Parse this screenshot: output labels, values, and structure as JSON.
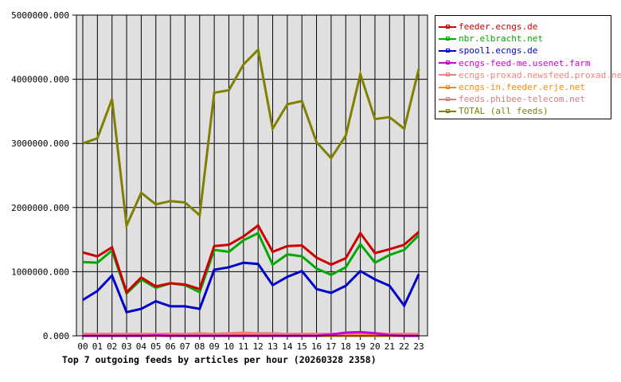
{
  "chart_data": {
    "type": "line",
    "title": "Top 7 outgoing feeds by articles per hour (20260328 2358)",
    "xlabel": "",
    "ylabel": "",
    "ylim": [
      0,
      5000000
    ],
    "yticks": [
      "0.000",
      "1000000.000",
      "2000000.000",
      "3000000.000",
      "4000000.000",
      "5000000.000"
    ],
    "grid": true,
    "legend_position": "right",
    "categories": [
      "00",
      "01",
      "02",
      "03",
      "04",
      "05",
      "06",
      "07",
      "08",
      "09",
      "10",
      "11",
      "12",
      "13",
      "14",
      "15",
      "16",
      "17",
      "18",
      "19",
      "20",
      "21",
      "22",
      "23"
    ],
    "series": [
      {
        "name": "feeder.ecngs.de",
        "color": "#cc0000",
        "values": [
          1300000,
          1240000,
          1380000,
          680000,
          910000,
          770000,
          820000,
          800000,
          730000,
          1400000,
          1420000,
          1550000,
          1720000,
          1310000,
          1400000,
          1410000,
          1220000,
          1110000,
          1210000,
          1600000,
          1290000,
          1350000,
          1420000,
          1620000
        ]
      },
      {
        "name": "nbr.elbracht.net",
        "color": "#00aa00",
        "values": [
          1150000,
          1140000,
          1330000,
          660000,
          880000,
          750000,
          820000,
          790000,
          680000,
          1340000,
          1310000,
          1490000,
          1600000,
          1110000,
          1270000,
          1240000,
          1050000,
          950000,
          1070000,
          1430000,
          1140000,
          1260000,
          1340000,
          1570000
        ]
      },
      {
        "name": "spool1.ecngs.de",
        "color": "#0000cc",
        "values": [
          560000,
          700000,
          940000,
          370000,
          420000,
          540000,
          460000,
          460000,
          420000,
          1030000,
          1070000,
          1140000,
          1120000,
          790000,
          920000,
          1010000,
          730000,
          670000,
          780000,
          1010000,
          880000,
          780000,
          470000,
          960000
        ]
      },
      {
        "name": "ecngs-feed-me.usenet.farm",
        "color": "#cc00cc",
        "values": [
          0,
          0,
          0,
          0,
          0,
          10000,
          0,
          0,
          0,
          0,
          0,
          0,
          0,
          0,
          0,
          0,
          0,
          20000,
          50000,
          60000,
          40000,
          10000,
          0,
          0
        ]
      },
      {
        "name": "ecngs-proxad.newsfeed.proxad.net",
        "color": "#f08080",
        "values": [
          30000,
          30000,
          30000,
          30000,
          30000,
          30000,
          30000,
          30000,
          40000,
          30000,
          40000,
          50000,
          40000,
          40000,
          30000,
          30000,
          30000,
          30000,
          30000,
          40000,
          40000,
          30000,
          30000,
          30000
        ]
      },
      {
        "name": "ecngs-in.feeder.erje.net",
        "color": "#ff8800",
        "values": [
          0,
          0,
          0,
          0,
          0,
          0,
          0,
          0,
          0,
          0,
          10000,
          30000,
          20000,
          10000,
          0,
          0,
          0,
          0,
          0,
          0,
          0,
          0,
          0,
          0
        ]
      },
      {
        "name": "feeds.phibee-telecom.net",
        "color": "#d08080",
        "values": [
          30000,
          30000,
          30000,
          30000,
          30000,
          30000,
          30000,
          30000,
          30000,
          30000,
          30000,
          30000,
          30000,
          30000,
          30000,
          30000,
          30000,
          30000,
          30000,
          30000,
          30000,
          30000,
          30000,
          30000
        ]
      },
      {
        "name": "TOTAL (all feeds)",
        "color": "#808000",
        "values": [
          3000000,
          3080000,
          3690000,
          1720000,
          2230000,
          2050000,
          2100000,
          2080000,
          1880000,
          3790000,
          3830000,
          4230000,
          4460000,
          3230000,
          3610000,
          3660000,
          3020000,
          2770000,
          3120000,
          4080000,
          3380000,
          3410000,
          3230000,
          4160000
        ]
      }
    ]
  },
  "legend": {
    "items": [
      {
        "label": "feeder.ecngs.de",
        "color": "#cc0000"
      },
      {
        "label": "nbr.elbracht.net",
        "color": "#00aa00"
      },
      {
        "label": "spool1.ecngs.de",
        "color": "#0000cc"
      },
      {
        "label": "ecngs-feed-me.usenet.farm",
        "color": "#cc00cc"
      },
      {
        "label": "ecngs-proxad.newsfeed.proxad.net",
        "color": "#f08080"
      },
      {
        "label": "ecngs-in.feeder.erje.net",
        "color": "#ff8800"
      },
      {
        "label": "feeds.phibee-telecom.net",
        "color": "#d08080"
      },
      {
        "label": "TOTAL (all feeds)",
        "color": "#808000"
      }
    ]
  },
  "footer": {
    "title": "Top 7 outgoing feeds by articles per hour (20260328 2358)"
  }
}
